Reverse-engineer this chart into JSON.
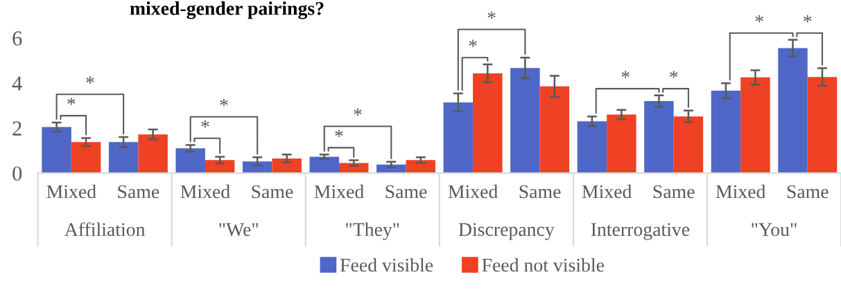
{
  "chart_data": {
    "type": "bar",
    "title": "mixed-gender pairings?",
    "categories": [
      "Mixed",
      "Same",
      "Mixed",
      "Same",
      "Mixed",
      "Same",
      "Mixed",
      "Same",
      "Mixed",
      "Same",
      "Mixed",
      "Same"
    ],
    "series": [
      {
        "name": "Feed visible",
        "color": "#4f67c6",
        "values": [
          2.05,
          1.38,
          1.1,
          0.52,
          0.73,
          0.38,
          3.14,
          4.67,
          2.3,
          3.2,
          3.66,
          5.55
        ],
        "errors": [
          0.2,
          0.22,
          0.15,
          0.18,
          0.1,
          0.12,
          0.4,
          0.46,
          0.22,
          0.25,
          0.33,
          0.37
        ]
      },
      {
        "name": "Feed not visible",
        "color": "#ef4123",
        "values": [
          1.38,
          1.72,
          0.58,
          0.65,
          0.45,
          0.58,
          4.43,
          3.85,
          2.6,
          2.52,
          4.25,
          4.27
        ],
        "errors": [
          0.18,
          0.22,
          0.15,
          0.18,
          0.12,
          0.12,
          0.4,
          0.47,
          0.21,
          0.26,
          0.32,
          0.39
        ]
      }
    ],
    "ylim": [
      0,
      6
    ],
    "yticks": [
      0,
      2,
      4,
      6
    ],
    "grid": false,
    "legend": "bottom",
    "annotations": [
      "Affiliation",
      "\"We\"",
      "\"They\"",
      "Discrepancy",
      "Interrogative",
      "\"You\"",
      "*",
      "*",
      "*",
      "*",
      "*",
      "*",
      "*",
      "*",
      "*",
      "*",
      "*",
      "*"
    ]
  }
}
